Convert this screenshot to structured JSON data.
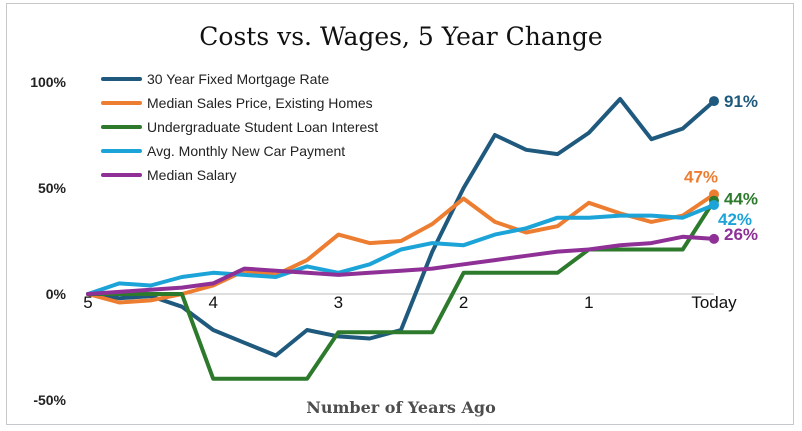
{
  "chart_data": {
    "type": "line",
    "title": "Costs vs. Wages, 5 Year Change",
    "xlabel": "Number of Years Ago",
    "ylabel": "",
    "x_ticks": [
      {
        "label": "5",
        "x": 5
      },
      {
        "label": "4",
        "x": 4
      },
      {
        "label": "3",
        "x": 3
      },
      {
        "label": "2",
        "x": 2
      },
      {
        "label": "1",
        "x": 1
      },
      {
        "label": "Today",
        "x": 0
      }
    ],
    "y_ticks": [
      {
        "label": "100%",
        "y": 100
      },
      {
        "label": "50%",
        "y": 50
      },
      {
        "label": "0%",
        "y": 0
      },
      {
        "label": "-50%",
        "y": -50
      }
    ],
    "xlim": [
      5,
      0
    ],
    "ylim": [
      -50,
      100
    ],
    "grid": false,
    "legend_position": "top-left",
    "series": [
      {
        "name": "30 Year Fixed Mortgage Rate",
        "color": "#1f5a7e",
        "end_label": "91%",
        "points": [
          [
            5,
            0
          ],
          [
            4.75,
            -2
          ],
          [
            4.5,
            -1
          ],
          [
            4.25,
            -6
          ],
          [
            4,
            -17
          ],
          [
            3.75,
            -23
          ],
          [
            3.5,
            -29
          ],
          [
            3.25,
            -17
          ],
          [
            3,
            -20
          ],
          [
            2.75,
            -21
          ],
          [
            2.5,
            -17
          ],
          [
            2.25,
            20
          ],
          [
            2,
            50
          ],
          [
            1.75,
            75
          ],
          [
            1.5,
            68
          ],
          [
            1.25,
            66
          ],
          [
            1,
            76
          ],
          [
            0.75,
            92
          ],
          [
            0.5,
            73
          ],
          [
            0.25,
            78
          ],
          [
            0,
            91
          ]
        ]
      },
      {
        "name": "Median Sales Price, Existing Homes",
        "color": "#ed7d31",
        "end_label": "47%",
        "points": [
          [
            5,
            0
          ],
          [
            4.75,
            -4
          ],
          [
            4.5,
            -3
          ],
          [
            4.25,
            0
          ],
          [
            4,
            4
          ],
          [
            3.75,
            11
          ],
          [
            3.5,
            9
          ],
          [
            3.25,
            16
          ],
          [
            3,
            28
          ],
          [
            2.75,
            24
          ],
          [
            2.5,
            25
          ],
          [
            2.25,
            33
          ],
          [
            2,
            45
          ],
          [
            1.75,
            34
          ],
          [
            1.5,
            29
          ],
          [
            1.25,
            32
          ],
          [
            1,
            43
          ],
          [
            0.75,
            38
          ],
          [
            0.5,
            34
          ],
          [
            0.25,
            37
          ],
          [
            0,
            47
          ]
        ]
      },
      {
        "name": "Undergraduate Student Loan Interest",
        "color": "#2d7a2d",
        "end_label": "44%",
        "points": [
          [
            5,
            0
          ],
          [
            4.5,
            0
          ],
          [
            4.25,
            0
          ],
          [
            4,
            -40
          ],
          [
            3.5,
            -40
          ],
          [
            3.25,
            -40
          ],
          [
            3,
            -18
          ],
          [
            2.5,
            -18
          ],
          [
            2.25,
            -18
          ],
          [
            2,
            10
          ],
          [
            1.5,
            10
          ],
          [
            1.25,
            10
          ],
          [
            1,
            21
          ],
          [
            0.5,
            21
          ],
          [
            0.25,
            21
          ],
          [
            0,
            44
          ]
        ]
      },
      {
        "name": "Avg. Monthly New Car Payment",
        "color": "#1ca4d8",
        "end_label": "42%",
        "points": [
          [
            5,
            0
          ],
          [
            4.75,
            5
          ],
          [
            4.5,
            4
          ],
          [
            4.25,
            8
          ],
          [
            4,
            10
          ],
          [
            3.75,
            9
          ],
          [
            3.5,
            8
          ],
          [
            3.25,
            13
          ],
          [
            3,
            10
          ],
          [
            2.75,
            14
          ],
          [
            2.5,
            21
          ],
          [
            2.25,
            24
          ],
          [
            2,
            23
          ],
          [
            1.75,
            28
          ],
          [
            1.5,
            31
          ],
          [
            1.25,
            36
          ],
          [
            1,
            36
          ],
          [
            0.75,
            37
          ],
          [
            0.5,
            37
          ],
          [
            0.25,
            36
          ],
          [
            0,
            42
          ]
        ]
      },
      {
        "name": "Median Salary",
        "color": "#8e3096",
        "end_label": "26%",
        "points": [
          [
            5,
            0
          ],
          [
            4.75,
            1
          ],
          [
            4.5,
            2
          ],
          [
            4.25,
            3
          ],
          [
            4,
            5
          ],
          [
            3.75,
            12
          ],
          [
            3.5,
            11
          ],
          [
            3.25,
            10
          ],
          [
            3,
            9
          ],
          [
            2.75,
            10
          ],
          [
            2.5,
            11
          ],
          [
            2.25,
            12
          ],
          [
            2,
            14
          ],
          [
            1.75,
            16
          ],
          [
            1.5,
            18
          ],
          [
            1.25,
            20
          ],
          [
            1,
            21
          ],
          [
            0.75,
            23
          ],
          [
            0.5,
            24
          ],
          [
            0.25,
            27
          ],
          [
            0,
            26
          ]
        ]
      }
    ]
  }
}
